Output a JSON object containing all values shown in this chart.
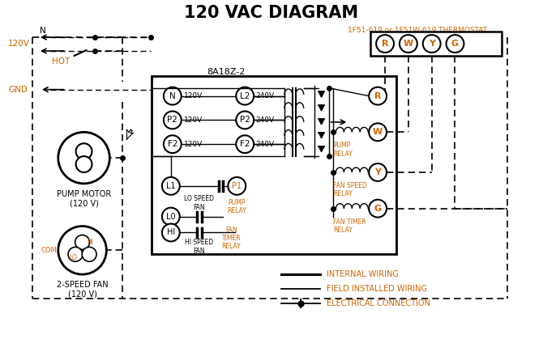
{
  "title": "120 VAC DIAGRAM",
  "title_fontsize": 15,
  "bg_color": "#ffffff",
  "black": "#000000",
  "orange": "#CC6600",
  "thermostat_label": "1F51-619 or 1F51W-619 THERMOSTAT",
  "control_box_label": "8A18Z-2",
  "pump_motor_label": "PUMP MOTOR\n(120 V)",
  "fan_label": "2-SPEED FAN\n(120 V)",
  "terminals_thermostat": [
    "R",
    "W",
    "Y",
    "G"
  ],
  "left_terms": [
    "N",
    "P2",
    "F2"
  ],
  "left_volts": [
    "120V",
    "120V",
    "120V"
  ],
  "right_terms": [
    "L2",
    "P2",
    "F2"
  ],
  "right_volts": [
    "240V",
    "240V",
    "240V"
  ],
  "relay_term_labels": [
    "W",
    "Y",
    "G"
  ],
  "relay_coil_labels": [
    "PUMP\nRELAY",
    "FAN SPEED\nRELAY",
    "FAN TIMER\nRELAY"
  ],
  "gnd_label": "GND",
  "hot_label": "HOT",
  "n_label": "N",
  "v120_label": "120V",
  "com_label": "COM",
  "lo_label": "LO",
  "hi_label": "HI",
  "legend_items": [
    "INTERNAL WIRING",
    "FIELD INSTALLED WIRING",
    "ELECTRICAL CONNECTION"
  ]
}
